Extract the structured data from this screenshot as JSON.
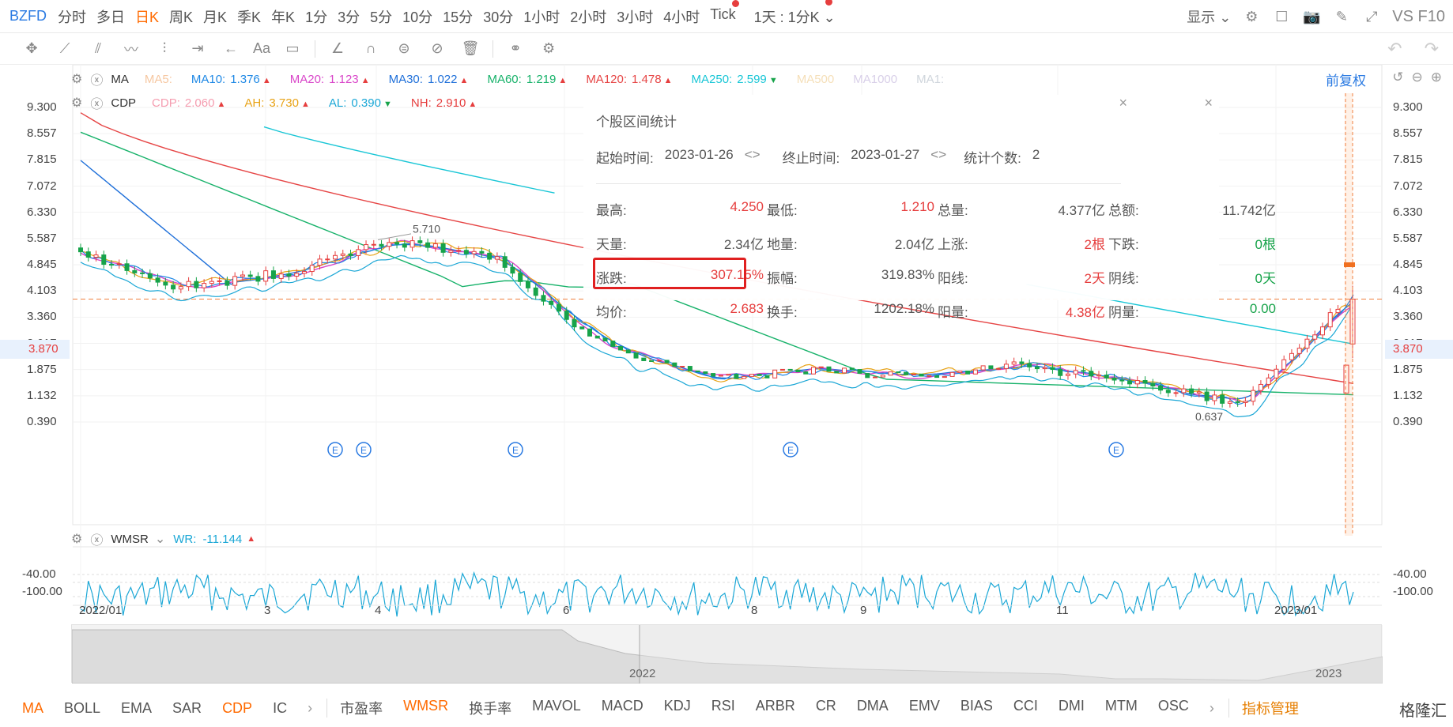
{
  "header": {
    "symbol": "BZFD",
    "periods": [
      "分时",
      "多日",
      "日K",
      "周K",
      "月K",
      "季K",
      "年K",
      "1分",
      "3分",
      "5分",
      "10分",
      "15分",
      "30分",
      "1小时",
      "2小时",
      "3小时",
      "4小时",
      "Tick"
    ],
    "active_period": "日K",
    "range_select": "1天 : 1分K",
    "display_label": "显示",
    "brand": "VS F10"
  },
  "toolbar": {
    "text_tool": "Aa"
  },
  "ma_legend": {
    "name": "MA",
    "items": [
      {
        "label": "MA5:",
        "value": "",
        "color": "#f6c7a1"
      },
      {
        "label": "MA10:",
        "value": "1.376",
        "color": "#1e88e5",
        "trend": "up"
      },
      {
        "label": "MA20:",
        "value": "1.123",
        "color": "#d946c9",
        "trend": "up"
      },
      {
        "label": "MA30:",
        "value": "1.022",
        "color": "#1e6fd9",
        "trend": "up"
      },
      {
        "label": "MA60:",
        "value": "1.219",
        "color": "#17b26a",
        "trend": "up"
      },
      {
        "label": "MA120:",
        "value": "1.478",
        "color": "#e64545",
        "trend": "up"
      },
      {
        "label": "MA250:",
        "value": "2.599",
        "color": "#19c6d6",
        "trend": "down"
      },
      {
        "label": "MA500",
        "value": "",
        "color": "#f5dfb8"
      },
      {
        "label": "MA1000",
        "value": "",
        "color": "#d8cfe8"
      },
      {
        "label": "MA1:",
        "value": "",
        "color": "#cfd5dc"
      }
    ],
    "adjust": "前复权"
  },
  "cdp_legend": {
    "name": "CDP",
    "items": [
      {
        "label": "CDP:",
        "value": "2.060",
        "color": "#f59db0",
        "trend": "up"
      },
      {
        "label": "AH:",
        "value": "3.730",
        "color": "#e8a317",
        "trend": "up"
      },
      {
        "label": "AL:",
        "value": "0.390",
        "color": "#1ba7d6",
        "trend": "down"
      },
      {
        "label": "NH:",
        "value": "2.910",
        "color": "#e63e3e",
        "trend": "up"
      }
    ]
  },
  "price_axis": {
    "ticks": [
      "9.300",
      "8.557",
      "7.815",
      "7.072",
      "6.330",
      "5.587",
      "4.845",
      "4.103",
      "3.360",
      "2.617",
      "1.875",
      "1.132",
      "0.390"
    ],
    "current_price": "3.870",
    "high_mark": "5.710",
    "low_mark": "0.637"
  },
  "chart_data": {
    "type": "candlestick",
    "title": "",
    "price_range": [
      0.39,
      9.3
    ],
    "events_marker": "E",
    "close_series_approx": [
      {
        "month": "2022/01",
        "close": 5.2
      },
      {
        "month": "2022/02",
        "close": 4.2
      },
      {
        "month": "2022/03",
        "close": 4.6
      },
      {
        "month": "2022/04",
        "close": 5.5
      },
      {
        "month": "2022/05",
        "close": 5.0
      },
      {
        "month": "2022/06",
        "close": 2.6
      },
      {
        "month": "2022/07",
        "close": 1.6
      },
      {
        "month": "2022/08",
        "close": 1.9
      },
      {
        "month": "2022/09",
        "close": 1.7
      },
      {
        "month": "2022/10",
        "close": 2.0
      },
      {
        "month": "2022/11",
        "close": 1.5
      },
      {
        "month": "2022/12",
        "close": 0.9
      },
      {
        "month": "2023/01",
        "close": 3.87
      }
    ]
  },
  "stats": {
    "title": "个股区间统计",
    "start_label": "起始时间:",
    "start_value": "2023-01-26",
    "end_label": "终止时间:",
    "end_value": "2023-01-27",
    "count_label": "统计个数:",
    "count_value": "2",
    "rows": [
      [
        {
          "k": "最高:",
          "v": "4.250",
          "c": "red"
        },
        {
          "k": "最低:",
          "v": "1.210",
          "c": "red"
        },
        {
          "k": "总量:",
          "v": "4.377亿",
          "c": "gray"
        },
        {
          "k": "总额:",
          "v": "11.742亿",
          "c": "gray"
        }
      ],
      [
        {
          "k": "天量:",
          "v": "2.34亿",
          "c": "gray"
        },
        {
          "k": "地量:",
          "v": "2.04亿",
          "c": "gray"
        },
        {
          "k": "上涨:",
          "v": "2根",
          "c": "red"
        },
        {
          "k": "下跌:",
          "v": "0根",
          "c": "green"
        }
      ],
      [
        {
          "k": "涨跌:",
          "v": "307.15%",
          "c": "red"
        },
        {
          "k": "振幅:",
          "v": "319.83%",
          "c": "gray"
        },
        {
          "k": "阳线:",
          "v": "2天",
          "c": "red"
        },
        {
          "k": "阴线:",
          "v": "0天",
          "c": "green"
        }
      ],
      [
        {
          "k": "均价:",
          "v": "2.683",
          "c": "red"
        },
        {
          "k": "换手:",
          "v": "1202.18%",
          "c": "gray"
        },
        {
          "k": "阳量:",
          "v": "4.38亿",
          "c": "red"
        },
        {
          "k": "阴量:",
          "v": "0.00",
          "c": "green"
        }
      ]
    ]
  },
  "wr": {
    "name": "WMSR",
    "label": "WR:",
    "value": "-11.144",
    "ticks": [
      "-40.00",
      "-100.00"
    ]
  },
  "dates": [
    "2022/01",
    "3",
    "4",
    "6",
    "8",
    "9",
    "11",
    "2023/01"
  ],
  "navigator": {
    "years": [
      "2022",
      "2023"
    ]
  },
  "bottom_tabs": [
    "MA",
    "BOLL",
    "EMA",
    "SAR",
    "CDP",
    "IC"
  ],
  "bottom_tabs2": [
    "市盈率",
    "WMSR",
    "换手率",
    "MAVOL",
    "MACD",
    "KDJ",
    "RSI",
    "ARBR",
    "CR",
    "DMA",
    "EMV",
    "BIAS",
    "CCI",
    "DMI",
    "MTM",
    "OSC"
  ],
  "active_tabs": [
    "MA",
    "CDP",
    "WMSR"
  ],
  "indicator_manage": "指标管理",
  "watermark": "格隆汇"
}
